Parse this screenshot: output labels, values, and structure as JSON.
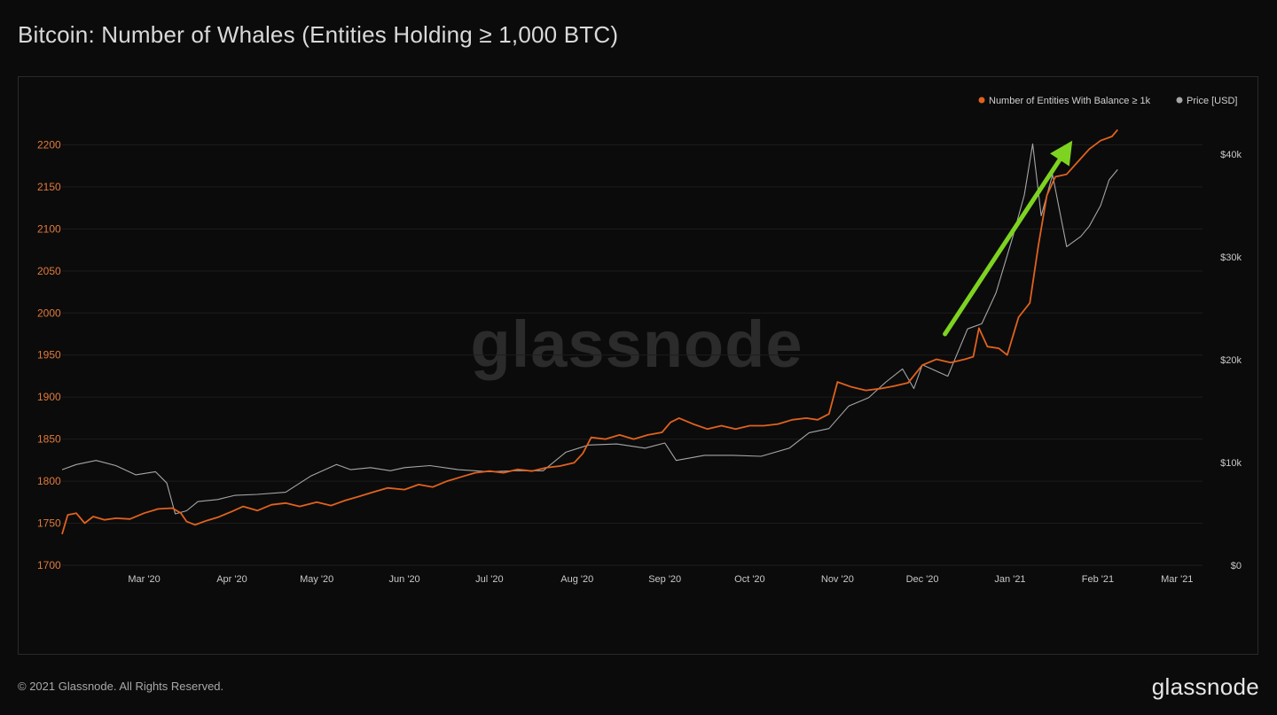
{
  "title": "Bitcoin: Number of Whales (Entities Holding ≥ 1,000 BTC)",
  "footer": "© 2021 Glassnode. All Rights Reserved.",
  "brand": "glassnode",
  "watermark": "glassnode",
  "colors": {
    "whales": "#e0621e",
    "price": "#a6a6a6",
    "arrow": "#7ed321",
    "grid": "#1c1c1c"
  },
  "chart_data": {
    "type": "line",
    "title": "Bitcoin: Number of Whales (Entities Holding ≥ 1,000 BTC)",
    "legend_position": "top-right",
    "grid": true,
    "x_range": [
      "2020-02-01",
      "2021-03-10"
    ],
    "x_ticks": [
      {
        "date": "2020-03-01",
        "label": "Mar '20"
      },
      {
        "date": "2020-04-01",
        "label": "Apr '20"
      },
      {
        "date": "2020-05-01",
        "label": "May '20"
      },
      {
        "date": "2020-06-01",
        "label": "Jun '20"
      },
      {
        "date": "2020-07-01",
        "label": "Jul '20"
      },
      {
        "date": "2020-08-01",
        "label": "Aug '20"
      },
      {
        "date": "2020-09-01",
        "label": "Sep '20"
      },
      {
        "date": "2020-10-01",
        "label": "Oct '20"
      },
      {
        "date": "2020-11-01",
        "label": "Nov '20"
      },
      {
        "date": "2020-12-01",
        "label": "Dec '20"
      },
      {
        "date": "2021-01-01",
        "label": "Jan '21"
      },
      {
        "date": "2021-02-01",
        "label": "Feb '21"
      },
      {
        "date": "2021-03-01",
        "label": "Mar '21"
      }
    ],
    "y_left": {
      "range": [
        1700,
        2250
      ],
      "ticks": [
        1700,
        1750,
        1800,
        1850,
        1900,
        1950,
        2000,
        2050,
        2100,
        2150,
        2200
      ]
    },
    "y_right": {
      "range": [
        0,
        45000
      ],
      "ticks": [
        {
          "value": 0,
          "label": "$0"
        },
        {
          "value": 10000,
          "label": "$10k"
        },
        {
          "value": 20000,
          "label": "$20k"
        },
        {
          "value": 30000,
          "label": "$30k"
        },
        {
          "value": 40000,
          "label": "$40k"
        }
      ]
    },
    "series": [
      {
        "name": "Number of Entities With Balance ≥ 1k",
        "axis": "left",
        "points": [
          [
            "2020-02-01",
            1737
          ],
          [
            "2020-02-03",
            1760
          ],
          [
            "2020-02-06",
            1762
          ],
          [
            "2020-02-09",
            1750
          ],
          [
            "2020-02-12",
            1758
          ],
          [
            "2020-02-16",
            1754
          ],
          [
            "2020-02-20",
            1756
          ],
          [
            "2020-02-25",
            1755
          ],
          [
            "2020-03-01",
            1762
          ],
          [
            "2020-03-06",
            1767
          ],
          [
            "2020-03-11",
            1768
          ],
          [
            "2020-03-14",
            1762
          ],
          [
            "2020-03-16",
            1752
          ],
          [
            "2020-03-19",
            1748
          ],
          [
            "2020-03-23",
            1753
          ],
          [
            "2020-03-27",
            1757
          ],
          [
            "2020-04-01",
            1764
          ],
          [
            "2020-04-05",
            1770
          ],
          [
            "2020-04-10",
            1765
          ],
          [
            "2020-04-15",
            1772
          ],
          [
            "2020-04-20",
            1774
          ],
          [
            "2020-04-25",
            1770
          ],
          [
            "2020-05-01",
            1775
          ],
          [
            "2020-05-06",
            1771
          ],
          [
            "2020-05-11",
            1777
          ],
          [
            "2020-05-16",
            1782
          ],
          [
            "2020-05-21",
            1787
          ],
          [
            "2020-05-26",
            1792
          ],
          [
            "2020-06-01",
            1790
          ],
          [
            "2020-06-06",
            1796
          ],
          [
            "2020-06-11",
            1793
          ],
          [
            "2020-06-16",
            1800
          ],
          [
            "2020-06-21",
            1805
          ],
          [
            "2020-06-26",
            1810
          ],
          [
            "2020-07-01",
            1812
          ],
          [
            "2020-07-06",
            1810
          ],
          [
            "2020-07-11",
            1814
          ],
          [
            "2020-07-16",
            1812
          ],
          [
            "2020-07-21",
            1816
          ],
          [
            "2020-07-26",
            1818
          ],
          [
            "2020-07-31",
            1822
          ],
          [
            "2020-08-03",
            1833
          ],
          [
            "2020-08-06",
            1852
          ],
          [
            "2020-08-11",
            1850
          ],
          [
            "2020-08-16",
            1855
          ],
          [
            "2020-08-21",
            1850
          ],
          [
            "2020-08-26",
            1855
          ],
          [
            "2020-08-31",
            1858
          ],
          [
            "2020-09-03",
            1870
          ],
          [
            "2020-09-06",
            1875
          ],
          [
            "2020-09-11",
            1868
          ],
          [
            "2020-09-16",
            1862
          ],
          [
            "2020-09-21",
            1866
          ],
          [
            "2020-09-26",
            1862
          ],
          [
            "2020-10-01",
            1866
          ],
          [
            "2020-10-06",
            1866
          ],
          [
            "2020-10-11",
            1868
          ],
          [
            "2020-10-16",
            1873
          ],
          [
            "2020-10-21",
            1875
          ],
          [
            "2020-10-25",
            1873
          ],
          [
            "2020-10-29",
            1880
          ],
          [
            "2020-11-01",
            1918
          ],
          [
            "2020-11-06",
            1912
          ],
          [
            "2020-11-11",
            1908
          ],
          [
            "2020-11-16",
            1910
          ],
          [
            "2020-11-21",
            1913
          ],
          [
            "2020-11-26",
            1917
          ],
          [
            "2020-12-01",
            1938
          ],
          [
            "2020-12-06",
            1945
          ],
          [
            "2020-12-11",
            1941
          ],
          [
            "2020-12-16",
            1945
          ],
          [
            "2020-12-19",
            1948
          ],
          [
            "2020-12-21",
            1982
          ],
          [
            "2020-12-24",
            1960
          ],
          [
            "2020-12-28",
            1958
          ],
          [
            "2020-12-31",
            1950
          ],
          [
            "2021-01-04",
            1995
          ],
          [
            "2021-01-08",
            2012
          ],
          [
            "2021-01-11",
            2080
          ],
          [
            "2021-01-14",
            2140
          ],
          [
            "2021-01-17",
            2162
          ],
          [
            "2021-01-21",
            2165
          ],
          [
            "2021-01-25",
            2180
          ],
          [
            "2021-01-29",
            2195
          ],
          [
            "2021-02-02",
            2205
          ],
          [
            "2021-02-06",
            2210
          ],
          [
            "2021-02-08",
            2218
          ]
        ]
      },
      {
        "name": "Price [USD]",
        "axis": "right",
        "points": [
          [
            "2020-02-01",
            9300
          ],
          [
            "2020-02-06",
            9800
          ],
          [
            "2020-02-13",
            10200
          ],
          [
            "2020-02-20",
            9700
          ],
          [
            "2020-02-27",
            8800
          ],
          [
            "2020-03-05",
            9100
          ],
          [
            "2020-03-09",
            8000
          ],
          [
            "2020-03-12",
            5000
          ],
          [
            "2020-03-16",
            5300
          ],
          [
            "2020-03-20",
            6200
          ],
          [
            "2020-03-27",
            6400
          ],
          [
            "2020-04-02",
            6800
          ],
          [
            "2020-04-10",
            6900
          ],
          [
            "2020-04-20",
            7100
          ],
          [
            "2020-04-29",
            8700
          ],
          [
            "2020-05-08",
            9800
          ],
          [
            "2020-05-13",
            9300
          ],
          [
            "2020-05-20",
            9500
          ],
          [
            "2020-05-27",
            9200
          ],
          [
            "2020-06-01",
            9500
          ],
          [
            "2020-06-10",
            9700
          ],
          [
            "2020-06-20",
            9300
          ],
          [
            "2020-07-01",
            9100
          ],
          [
            "2020-07-10",
            9200
          ],
          [
            "2020-07-20",
            9200
          ],
          [
            "2020-07-28",
            11000
          ],
          [
            "2020-08-05",
            11700
          ],
          [
            "2020-08-15",
            11800
          ],
          [
            "2020-08-25",
            11400
          ],
          [
            "2020-09-01",
            11900
          ],
          [
            "2020-09-05",
            10200
          ],
          [
            "2020-09-15",
            10700
          ],
          [
            "2020-09-25",
            10700
          ],
          [
            "2020-10-05",
            10600
          ],
          [
            "2020-10-15",
            11400
          ],
          [
            "2020-10-22",
            12900
          ],
          [
            "2020-10-29",
            13300
          ],
          [
            "2020-11-05",
            15500
          ],
          [
            "2020-11-12",
            16300
          ],
          [
            "2020-11-18",
            17800
          ],
          [
            "2020-11-24",
            19100
          ],
          [
            "2020-11-28",
            17200
          ],
          [
            "2020-12-01",
            19500
          ],
          [
            "2020-12-10",
            18400
          ],
          [
            "2020-12-17",
            23000
          ],
          [
            "2020-12-22",
            23500
          ],
          [
            "2020-12-27",
            26500
          ],
          [
            "2021-01-02",
            32000
          ],
          [
            "2021-01-06",
            36000
          ],
          [
            "2021-01-09",
            41000
          ],
          [
            "2021-01-12",
            34000
          ],
          [
            "2021-01-16",
            38000
          ],
          [
            "2021-01-21",
            31000
          ],
          [
            "2021-01-26",
            32000
          ],
          [
            "2021-01-29",
            33000
          ],
          [
            "2021-02-02",
            35000
          ],
          [
            "2021-02-05",
            37500
          ],
          [
            "2021-02-08",
            38500
          ]
        ]
      }
    ],
    "annotations": [
      {
        "type": "arrow",
        "from": [
          "2020-12-09",
          1975
        ],
        "to": [
          "2021-01-23",
          2205
        ]
      }
    ]
  }
}
